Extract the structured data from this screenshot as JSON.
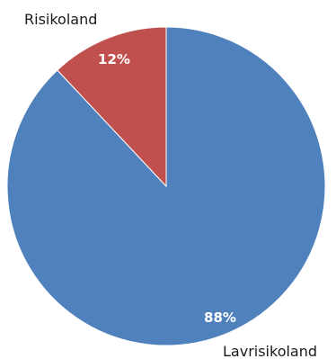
{
  "chart_data": {
    "type": "pie",
    "title": "",
    "start_angle_deg": 0,
    "direction": "clockwise",
    "slices": [
      {
        "label": "Lavrisikoland",
        "value": 88,
        "value_label": "88%",
        "color": "#4F81BD"
      },
      {
        "label": "Risikoland",
        "value": 12,
        "value_label": "12%",
        "color": "#C0504D"
      }
    ],
    "legend": "none"
  }
}
